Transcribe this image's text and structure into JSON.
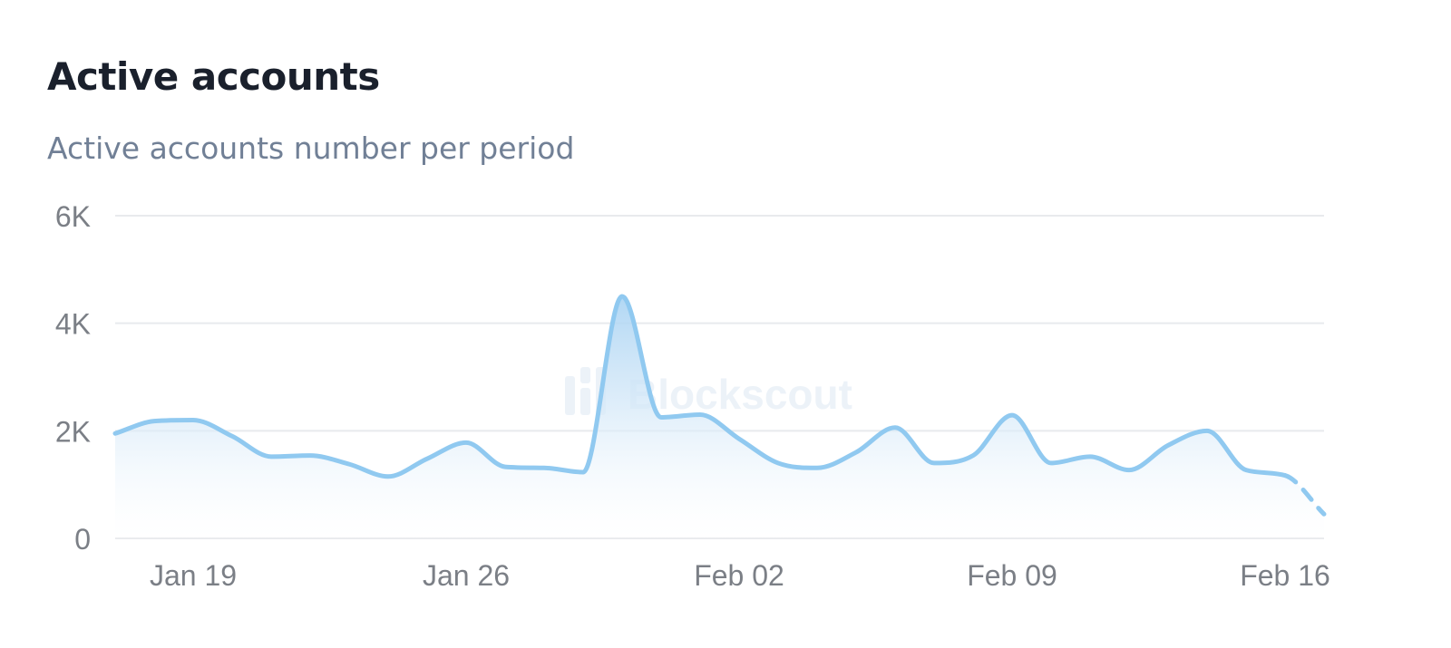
{
  "header": {
    "title": "Active accounts",
    "subtitle": "Active accounts number per period"
  },
  "watermark": {
    "text": "Blockscout"
  },
  "colors": {
    "line": "#90c9f0",
    "fill": "#bcdcf5",
    "grid": "#e8eaed",
    "axis_text": "#7b7f86"
  },
  "chart_data": {
    "type": "area",
    "title": "Active accounts",
    "subtitle": "Active accounts number per period",
    "xlabel": "",
    "ylabel": "",
    "ylim": [
      0,
      6000
    ],
    "y_ticks": [
      0,
      2000,
      4000,
      6000
    ],
    "y_tick_labels": [
      "0",
      "2K",
      "4K",
      "6K"
    ],
    "x_tick_labels": [
      "Jan 19",
      "Jan 26",
      "Feb 02",
      "Feb 09",
      "Feb 16"
    ],
    "x_ticks": [
      "2025-01-19",
      "2025-01-26",
      "2025-02-02",
      "2025-02-09",
      "2025-02-16"
    ],
    "grid": true,
    "legend": "none",
    "incomplete_last_segment": true,
    "series": [
      {
        "x": [
          "2025-01-17",
          "2025-01-18",
          "2025-01-19",
          "2025-01-20",
          "2025-01-21",
          "2025-01-22",
          "2025-01-23",
          "2025-01-24",
          "2025-01-25",
          "2025-01-26",
          "2025-01-27",
          "2025-01-28",
          "2025-01-29",
          "2025-01-30",
          "2025-01-31",
          "2025-02-01",
          "2025-02-02",
          "2025-02-03",
          "2025-02-04",
          "2025-02-05",
          "2025-02-06",
          "2025-02-07",
          "2025-02-08",
          "2025-02-09",
          "2025-02-10",
          "2025-02-11",
          "2025-02-12",
          "2025-02-13",
          "2025-02-14",
          "2025-02-15",
          "2025-02-16",
          "2025-02-17"
        ],
        "values": [
          1950,
          2180,
          2200,
          1900,
          1520,
          1540,
          1380,
          1150,
          1480,
          1780,
          1330,
          1310,
          1230,
          4500,
          2250,
          2300,
          1850,
          1400,
          1310,
          1600,
          2060,
          1400,
          1540,
          2290,
          1400,
          1520,
          1270,
          1730,
          2000,
          1270,
          1170,
          450
        ]
      }
    ]
  }
}
